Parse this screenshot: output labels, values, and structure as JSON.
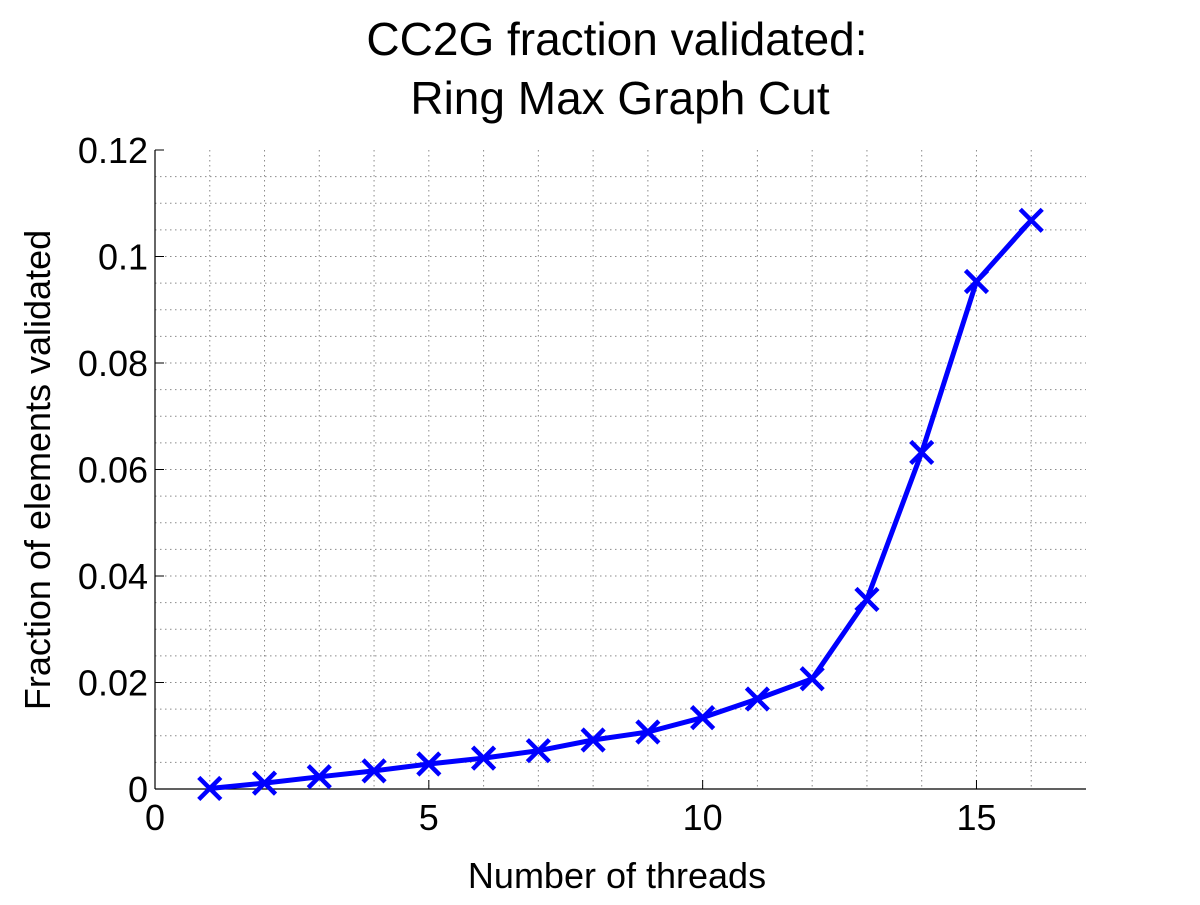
{
  "chart_data": {
    "type": "line",
    "title": [
      "CC2G fraction validated:",
      "Ring Max Graph Cut"
    ],
    "xlabel": "Number of threads",
    "ylabel": "Fraction of elements validated",
    "xlim": [
      0,
      17
    ],
    "ylim": [
      0,
      0.12
    ],
    "x_ticks": [
      0,
      5,
      10,
      15
    ],
    "x_tick_labels": [
      "0",
      "5",
      "10",
      "15"
    ],
    "y_ticks": [
      0,
      0.02,
      0.04,
      0.06,
      0.08,
      0.1,
      0.12
    ],
    "y_tick_labels": [
      "0",
      "0.02",
      "0.04",
      "0.06",
      "0.08",
      "0.1",
      "0.12"
    ],
    "grid": true,
    "minor_grid": true,
    "series": [
      {
        "color": "#0000ff",
        "marker": "x",
        "x": [
          1,
          2,
          3,
          4,
          5,
          6,
          7,
          8,
          9,
          10,
          11,
          12,
          13,
          14,
          15,
          16
        ],
        "y": [
          0.0001,
          0.0011,
          0.0023,
          0.0034,
          0.0047,
          0.0058,
          0.0072,
          0.0092,
          0.0107,
          0.0134,
          0.0169,
          0.0207,
          0.0356,
          0.0632,
          0.0953,
          0.1068
        ]
      }
    ]
  }
}
